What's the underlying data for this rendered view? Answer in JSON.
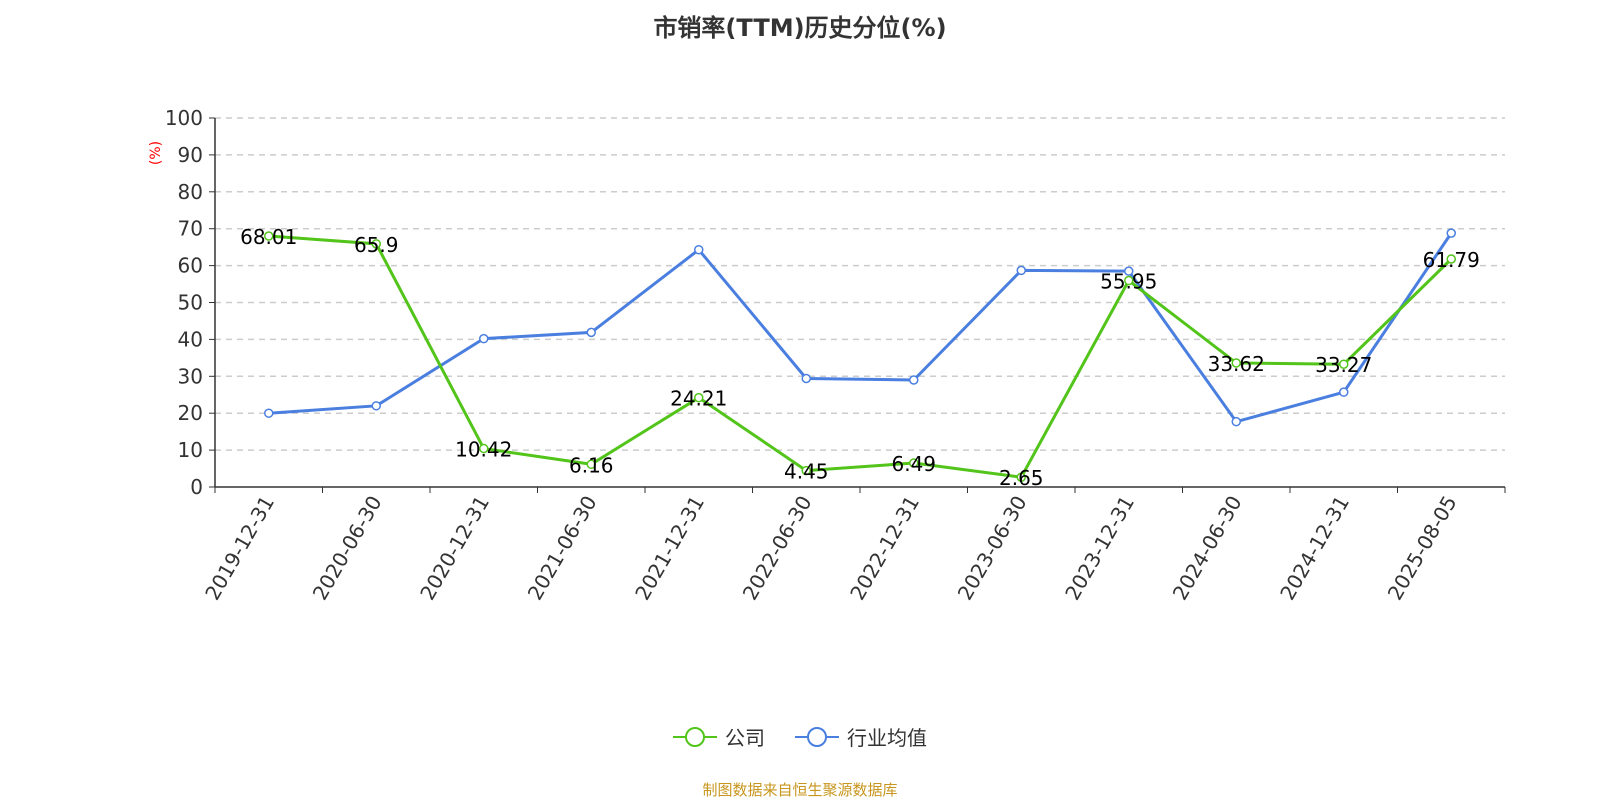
{
  "chart_data": {
    "type": "line",
    "title": "市销率(TTM)历史分位(%)",
    "ylabel": "(%)",
    "ylim": [
      0,
      100
    ],
    "yticks": [
      0,
      10,
      20,
      30,
      40,
      50,
      60,
      70,
      80,
      90,
      100
    ],
    "grid": true,
    "legend_position": "bottom",
    "categories": [
      "2019-12-31",
      "2020-06-30",
      "2020-12-31",
      "2021-06-30",
      "2021-12-31",
      "2022-06-30",
      "2022-12-31",
      "2023-06-30",
      "2023-12-31",
      "2024-06-30",
      "2024-12-31",
      "2025-08-05"
    ],
    "series": [
      {
        "name": "公司",
        "color": "#52c41a",
        "values": [
          68.01,
          65.9,
          10.42,
          6.16,
          24.21,
          4.45,
          6.49,
          2.65,
          55.95,
          33.62,
          33.27,
          61.79
        ],
        "labels": true
      },
      {
        "name": "行业均值",
        "color": "#4a7fe0",
        "values": [
          20,
          22,
          40.2,
          41.9,
          64.3,
          29.4,
          29,
          58.7,
          58.5,
          17.7,
          25.7,
          68.8
        ],
        "labels": false
      }
    ]
  },
  "source": "制图数据来自恒生聚源数据库"
}
